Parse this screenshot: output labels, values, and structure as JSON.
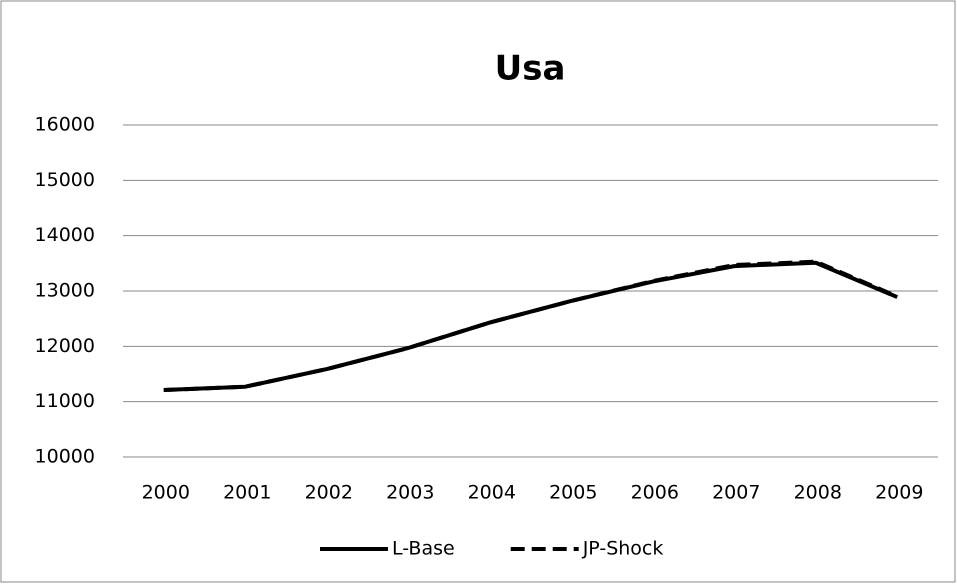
{
  "chart_data": {
    "type": "line",
    "title": "Usa",
    "categories": [
      "2000",
      "2001",
      "2002",
      "2003",
      "2004",
      "2005",
      "2006",
      "2007",
      "2008",
      "2009"
    ],
    "series": [
      {
        "name": "L-Base",
        "color": "#000000",
        "line_style": "solid",
        "values": [
          11210,
          11270,
          11590,
          11970,
          12430,
          12820,
          13170,
          13450,
          13510,
          12890
        ]
      },
      {
        "name": "JP-Shock",
        "color": "#000000",
        "line_style": "dashed",
        "values": [
          11210,
          11270,
          11590,
          11970,
          12430,
          12820,
          13180,
          13470,
          13530,
          12900
        ]
      }
    ],
    "ylim": [
      10000,
      16000
    ],
    "yticks": [
      10000,
      11000,
      12000,
      13000,
      14000,
      15000,
      16000
    ],
    "grid": true,
    "legend": "bottom"
  }
}
